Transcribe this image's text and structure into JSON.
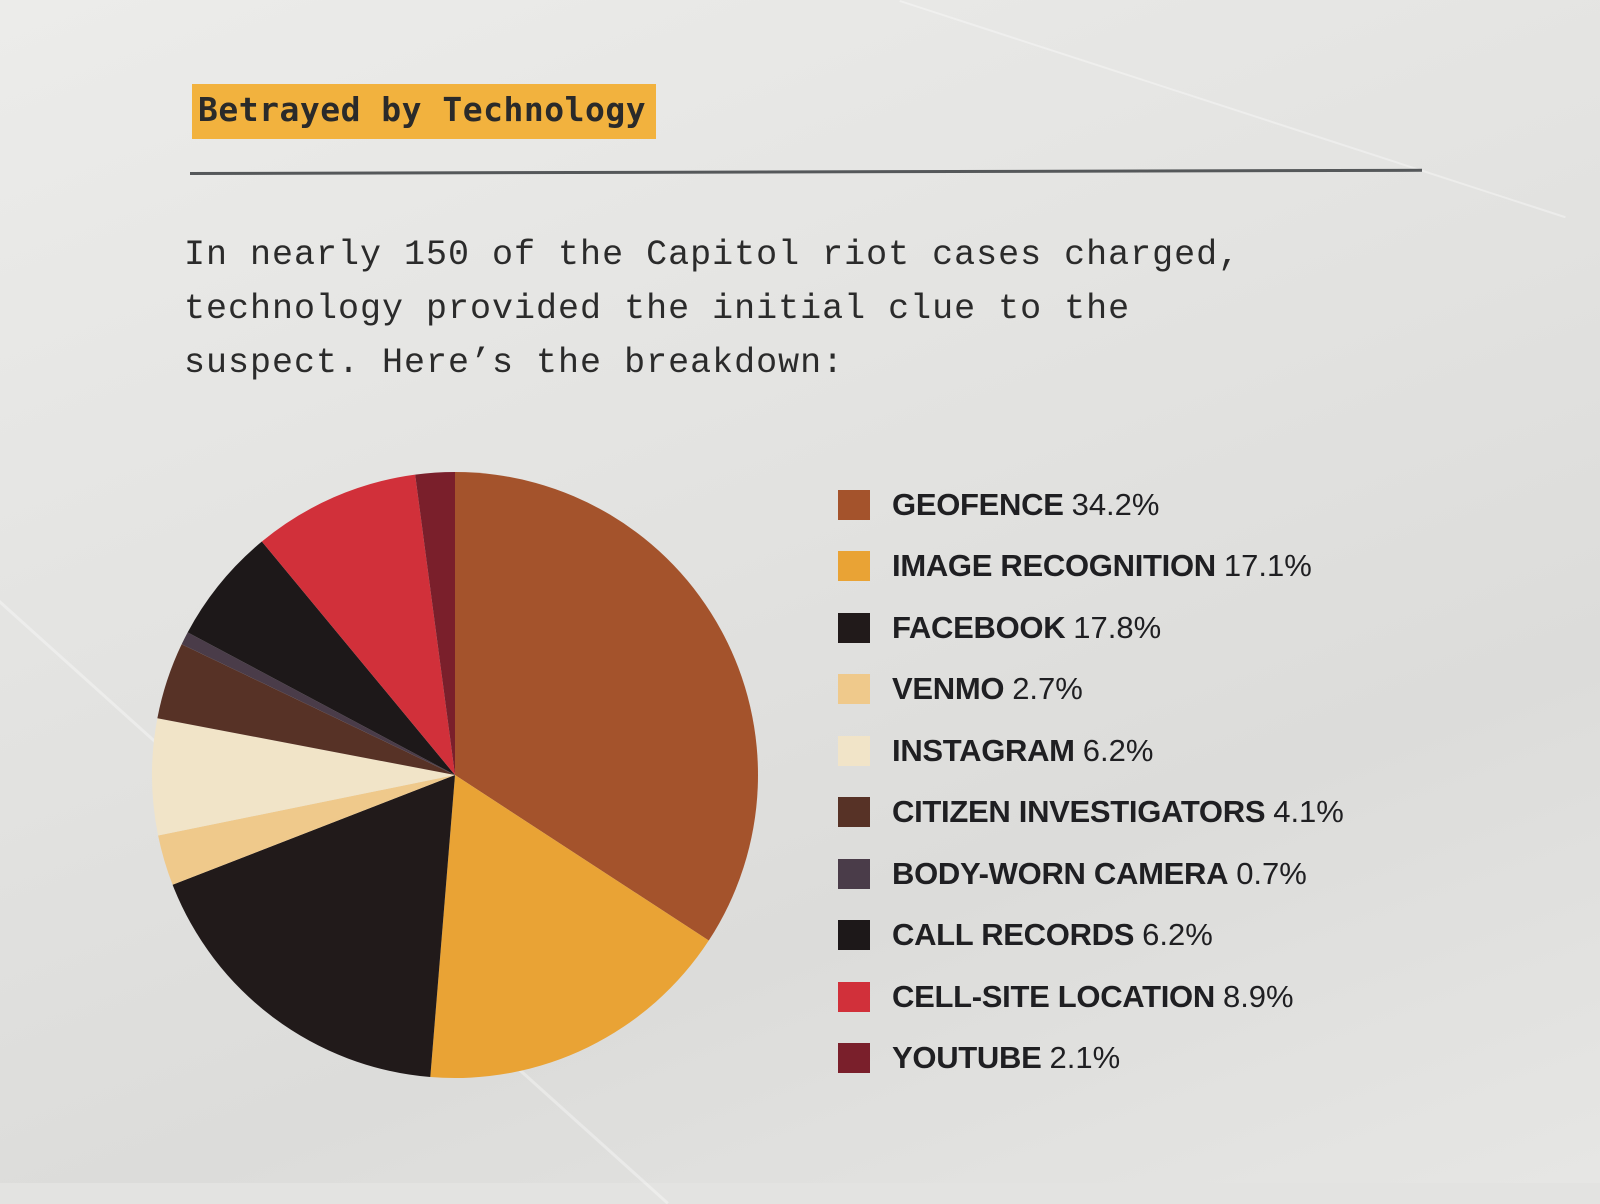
{
  "kicker": "Betrayed by Technology",
  "intro": "In nearly 150 of the Capitol riot cases charged,\ntechnology provided the initial clue to the\nsuspect. Here’s the breakdown:",
  "chart_data": {
    "type": "pie",
    "title": "",
    "slices": [
      {
        "label": "GEOFENCE",
        "value": 34.2,
        "value_text": "34.2%",
        "color": "#a4532c"
      },
      {
        "label": "IMAGE RECOGNITION",
        "value": 17.1,
        "value_text": "17.1%",
        "color": "#e9a335"
      },
      {
        "label": "FACEBOOK",
        "value": 17.8,
        "value_text": "17.8%",
        "color": "#211a1a"
      },
      {
        "label": "VENMO",
        "value": 2.7,
        "value_text": "2.7%",
        "color": "#efc98b"
      },
      {
        "label": "INSTAGRAM",
        "value": 6.2,
        "value_text": "6.2%",
        "color": "#f1e4c8"
      },
      {
        "label": "CITIZEN INVESTIGATORS",
        "value": 4.1,
        "value_text": "4.1%",
        "color": "#573226"
      },
      {
        "label": "BODY-WORN CAMERA",
        "value": 0.7,
        "value_text": "0.7%",
        "color": "#4a3c49"
      },
      {
        "label": "CALL RECORDS",
        "value": 6.2,
        "value_text": "6.2%",
        "color": "#1d1819"
      },
      {
        "label": "CELL-SITE LOCATION",
        "value": 8.9,
        "value_text": "8.9%",
        "color": "#d1303a"
      },
      {
        "label": "YOUTUBE",
        "value": 2.1,
        "value_text": "2.1%",
        "color": "#7a1f2b"
      }
    ],
    "legend": "right"
  }
}
